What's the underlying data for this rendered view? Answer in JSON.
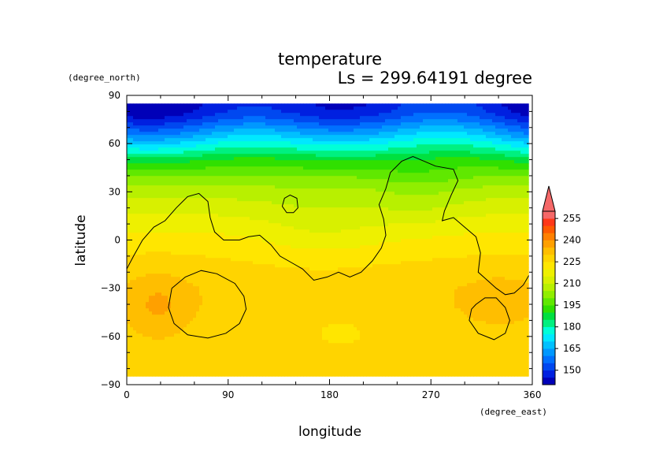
{
  "chart_data": {
    "type": "heatmap",
    "title": "temperature",
    "subtitle": "Ls = 299.64191 degree",
    "xlabel": "longitude",
    "ylabel": "latitude",
    "x_units": "(degree_east)",
    "y_units": "(degree_north)",
    "xlim": [
      0,
      360
    ],
    "ylim": [
      -90,
      90
    ],
    "x_ticks": [
      0,
      90,
      180,
      270,
      360
    ],
    "y_ticks": [
      90,
      60,
      30,
      0,
      -30,
      -60,
      -90
    ],
    "x_tick_labels": [
      "0",
      "90",
      "180",
      "270",
      "360"
    ],
    "y_tick_labels": [
      "90",
      "60",
      "30",
      "0",
      "−30",
      "−60",
      "−90"
    ],
    "data_lat_range": [
      -85,
      85
    ],
    "data_lon_range": [
      0,
      357
    ],
    "colorbar": {
      "levels": [
        140,
        145,
        150,
        155,
        160,
        165,
        170,
        175,
        180,
        185,
        190,
        195,
        200,
        205,
        210,
        215,
        220,
        225,
        230,
        235,
        240,
        245,
        250,
        255,
        260
      ],
      "colors": [
        "#0000b8",
        "#0020e0",
        "#0048f0",
        "#0070ff",
        "#0098ff",
        "#00c0ff",
        "#00e8ff",
        "#00ffd8",
        "#00f080",
        "#00e040",
        "#30e000",
        "#60e800",
        "#90ee00",
        "#b8f000",
        "#d8f000",
        "#eef000",
        "#ffe600",
        "#ffd400",
        "#ffbe00",
        "#ffa000",
        "#ff8000",
        "#ff5a00",
        "#ff3818",
        "#f56868"
      ],
      "tick_values": [
        150,
        165,
        180,
        195,
        210,
        225,
        240,
        255
      ],
      "tick_labels": [
        "150",
        "165",
        "180",
        "195",
        "210",
        "225",
        "240",
        "255"
      ],
      "extend": "max"
    },
    "field_profile": {
      "lats": [
        -85,
        -70,
        -60,
        -50,
        -40,
        -30,
        -20,
        -10,
        0,
        10,
        20,
        30,
        40,
        50,
        55,
        60,
        65,
        70,
        75,
        80,
        85
      ],
      "temps": [
        226,
        226,
        227,
        228,
        229,
        229,
        227,
        225,
        222,
        218,
        213,
        208,
        200,
        190,
        182,
        175,
        167,
        160,
        153,
        148,
        146
      ]
    },
    "contour_lines": [
      {
        "name": "continent",
        "lonlat": [
          [
            0,
            -18
          ],
          [
            6,
            -10
          ],
          [
            14,
            0
          ],
          [
            24,
            8
          ],
          [
            34,
            12
          ],
          [
            44,
            20
          ],
          [
            54,
            27
          ],
          [
            64,
            29
          ],
          [
            72,
            24
          ],
          [
            74,
            14
          ],
          [
            78,
            5
          ],
          [
            86,
            0
          ],
          [
            100,
            0
          ],
          [
            108,
            2
          ],
          [
            118,
            3
          ],
          [
            128,
            -3
          ],
          [
            136,
            -10
          ],
          [
            146,
            -14
          ],
          [
            156,
            -18
          ],
          [
            166,
            -25
          ],
          [
            178,
            -23
          ],
          [
            188,
            -20
          ],
          [
            198,
            -23
          ],
          [
            208,
            -20
          ],
          [
            218,
            -13
          ],
          [
            226,
            -5
          ],
          [
            230,
            3
          ],
          [
            228,
            13
          ],
          [
            224,
            22
          ],
          [
            230,
            32
          ],
          [
            234,
            42
          ],
          [
            244,
            49
          ],
          [
            254,
            52
          ],
          [
            264,
            49
          ],
          [
            274,
            46
          ],
          [
            290,
            44
          ],
          [
            294,
            37
          ],
          [
            288,
            28
          ],
          [
            282,
            18
          ],
          [
            280,
            12
          ],
          [
            290,
            14
          ],
          [
            300,
            8
          ],
          [
            310,
            2
          ],
          [
            314,
            -8
          ],
          [
            312,
            -20
          ],
          [
            320,
            -25
          ],
          [
            328,
            -30
          ],
          [
            336,
            -34
          ],
          [
            344,
            -33
          ],
          [
            352,
            -28
          ],
          [
            357,
            -22
          ]
        ]
      },
      {
        "name": "island",
        "lonlat": [
          [
            138,
            21
          ],
          [
            140,
            26
          ],
          [
            145,
            28
          ],
          [
            151,
            26
          ],
          [
            152,
            20
          ],
          [
            148,
            17
          ],
          [
            142,
            17
          ],
          [
            138,
            21
          ]
        ]
      },
      {
        "name": "west-basin",
        "lonlat": [
          [
            40,
            -30
          ],
          [
            52,
            -23
          ],
          [
            66,
            -19
          ],
          [
            80,
            -21
          ],
          [
            96,
            -27
          ],
          [
            104,
            -35
          ],
          [
            106,
            -43
          ],
          [
            100,
            -52
          ],
          [
            88,
            -58
          ],
          [
            72,
            -61
          ],
          [
            54,
            -59
          ],
          [
            42,
            -52
          ],
          [
            37,
            -42
          ],
          [
            40,
            -30
          ]
        ]
      },
      {
        "name": "east-basin",
        "lonlat": [
          [
            310,
            -40
          ],
          [
            318,
            -36
          ],
          [
            328,
            -36
          ],
          [
            336,
            -42
          ],
          [
            340,
            -50
          ],
          [
            336,
            -58
          ],
          [
            326,
            -62
          ],
          [
            312,
            -58
          ],
          [
            304,
            -50
          ],
          [
            306,
            -43
          ],
          [
            310,
            -40
          ]
        ]
      }
    ],
    "grid": false,
    "legend": "right"
  }
}
